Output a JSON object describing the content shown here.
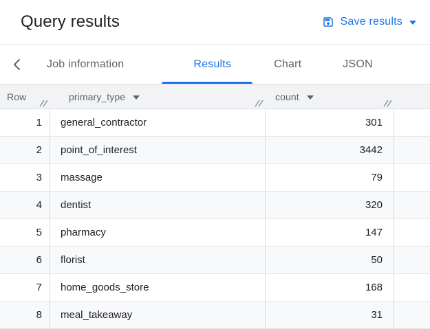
{
  "panel": {
    "title": "Query results",
    "save_button": {
      "label": "Save results"
    }
  },
  "tabs": {
    "items": [
      {
        "label": "Job information",
        "active": false
      },
      {
        "label": "Results",
        "active": true
      },
      {
        "label": "Chart",
        "active": false
      },
      {
        "label": "JSON",
        "active": false
      }
    ]
  },
  "table": {
    "columns": [
      {
        "label": "Row",
        "sortable": false
      },
      {
        "label": "primary_type",
        "sortable": true
      },
      {
        "label": "count",
        "sortable": true
      }
    ],
    "rows": [
      {
        "row": "1",
        "primary_type": "general_contractor",
        "count": "301"
      },
      {
        "row": "2",
        "primary_type": "point_of_interest",
        "count": "3442"
      },
      {
        "row": "3",
        "primary_type": "massage",
        "count": "79"
      },
      {
        "row": "4",
        "primary_type": "dentist",
        "count": "320"
      },
      {
        "row": "5",
        "primary_type": "pharmacy",
        "count": "147"
      },
      {
        "row": "6",
        "primary_type": "florist",
        "count": "50"
      },
      {
        "row": "7",
        "primary_type": "home_goods_store",
        "count": "168"
      },
      {
        "row": "8",
        "primary_type": "meal_takeaway",
        "count": "31"
      }
    ]
  },
  "icons": {
    "save": "save-icon",
    "save_caret": "caret-down-icon",
    "back": "chevron-left-icon",
    "sort": "caret-down-icon",
    "resize": "column-resize-handle-icon"
  },
  "colors": {
    "accent_blue": "#1a73e8",
    "text_primary": "#202124",
    "text_secondary": "#5f6368",
    "header_bg": "#f1f3f4",
    "zebra_bg": "#f8f9fa",
    "grid_border": "#dadce0"
  }
}
